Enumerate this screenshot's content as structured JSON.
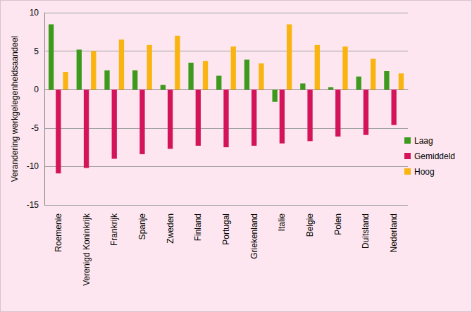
{
  "chart_data": {
    "type": "bar",
    "y_label": "Verandering werkgelegenheidsaandeel",
    "categories": [
      "Roemenie",
      "Verenigd Koninkrijk",
      "Frankrijk",
      "Spanje",
      "Zweden",
      "Finland",
      "Portugal",
      "Griekenland",
      "Italie",
      "Belgie",
      "Polen",
      "Duitsland",
      "Nederland"
    ],
    "series": [
      {
        "name": "Laag",
        "color": "#3d9a1c",
        "values": [
          8.5,
          5.2,
          2.5,
          2.5,
          0.6,
          3.5,
          1.8,
          3.9,
          -1.6,
          0.8,
          0.3,
          1.7,
          2.4
        ]
      },
      {
        "name": "Gemiddeld",
        "color": "#d4145a",
        "values": [
          -10.9,
          -10.2,
          -9.0,
          -8.4,
          -7.7,
          -7.3,
          -7.5,
          -7.3,
          -7.0,
          -6.7,
          -6.1,
          -5.9,
          -4.6
        ]
      },
      {
        "name": "Hoog",
        "color": "#f9b410",
        "values": [
          2.3,
          5.0,
          6.5,
          5.8,
          7.0,
          3.7,
          5.6,
          3.4,
          8.5,
          5.8,
          5.6,
          4.0,
          2.1
        ]
      }
    ],
    "ylim": [
      -15,
      10
    ],
    "yticks": [
      -15,
      -10,
      -5,
      0,
      5,
      10
    ],
    "grid": true,
    "legend": "right"
  }
}
